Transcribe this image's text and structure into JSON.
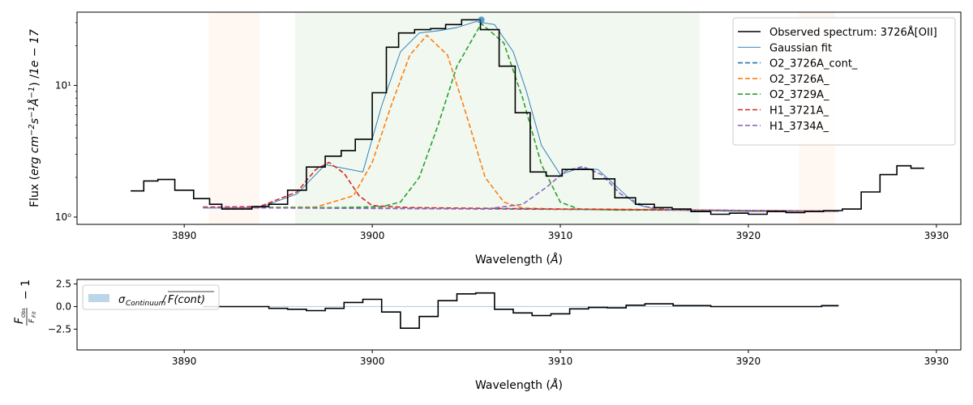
{
  "chart_data": [
    {
      "type": "line",
      "name": "main-spectrum",
      "xlabel": "Wavelength (Å)",
      "ylabel": "Flux (erg cm⁻² s⁻¹ Å⁻¹) /1e − 17",
      "xlim": [
        3884.3,
        3931.3
      ],
      "ylim": [
        0.88,
        36
      ],
      "yscale": "log",
      "x_ticks": [
        3890,
        3900,
        3910,
        3920,
        3930
      ],
      "y_ticks": [
        {
          "value": 1,
          "label": "10⁰"
        },
        {
          "value": 10,
          "label": "10¹"
        }
      ],
      "grid": false,
      "legend_position": "top-right",
      "observed": {
        "name": "Observed spectrum: 3726Å[OII]",
        "color": "#000000",
        "x": [
          3887.5,
          3888.2,
          3889.0,
          3890.0,
          3891.0,
          3891.7,
          3892.3,
          3893.2,
          3894.0,
          3895.0,
          3896.0,
          3897.0,
          3898.0,
          3898.7,
          3899.5,
          3900.5,
          3901.0,
          3901.8,
          3902.7,
          3903.5,
          3904.3,
          3905.2,
          3906.3,
          3907.2,
          3908.0,
          3908.8,
          3909.7,
          3910.5,
          3911.2,
          3912.3,
          3913.5,
          3914.5,
          3915.5,
          3916.4,
          3917.5,
          3918.5,
          3919.5,
          3920.5,
          3921.5,
          3922.5,
          3923.5,
          3924.5,
          3925.5,
          3926.5,
          3927.5,
          3928.3,
          3929.0
        ],
        "y": [
          1.58,
          1.88,
          1.93,
          1.6,
          1.38,
          1.25,
          1.15,
          1.15,
          1.2,
          1.25,
          1.6,
          2.4,
          2.9,
          3.2,
          3.9,
          8.8,
          19.5,
          25.0,
          26.5,
          27.0,
          29.0,
          31.5,
          26.5,
          14.0,
          6.2,
          2.2,
          2.05,
          2.3,
          2.3,
          1.95,
          1.4,
          1.25,
          1.18,
          1.15,
          1.1,
          1.05,
          1.07,
          1.05,
          1.1,
          1.08,
          1.1,
          1.12,
          1.15,
          1.55,
          2.1,
          2.45,
          2.35
        ]
      },
      "series": [
        {
          "name": "Gaussian fit",
          "color": "#1f77b4",
          "x": [
            3891.0,
            3894.0,
            3896.0,
            3897.5,
            3899.5,
            3900.5,
            3901.5,
            3902.5,
            3903.5,
            3904.5,
            3905.5,
            3906.5,
            3907.5,
            3908.2,
            3909.0,
            3910.0,
            3911.0,
            3912.0,
            3913.0,
            3914.0,
            3915.0,
            3917.0,
            3920.0,
            3922.0,
            3924.8
          ],
          "y": [
            1.17,
            1.18,
            1.5,
            2.5,
            2.2,
            7.0,
            18.0,
            25.0,
            26.0,
            27.5,
            30.5,
            29.0,
            18.0,
            9.0,
            3.5,
            2.1,
            2.35,
            2.3,
            1.7,
            1.25,
            1.15,
            1.12,
            1.1,
            1.1,
            1.1
          ]
        },
        {
          "name": "O2_3726A_cont_",
          "color": "#1f77b4",
          "x": [
            3891.0,
            3924.8
          ],
          "y": [
            1.19,
            1.11
          ]
        },
        {
          "name": "O2_3726A_",
          "color": "#ff7f0e",
          "x": [
            3891.0,
            3894.0,
            3897.0,
            3899.0,
            3900.0,
            3901.0,
            3902.0,
            3902.9,
            3904.0,
            3905.0,
            3906.0,
            3907.0,
            3908.0,
            3910.0,
            3912.0,
            3915.0,
            3920.0,
            3924.8
          ],
          "y": [
            1.19,
            1.18,
            1.19,
            1.45,
            2.6,
            7.0,
            17.0,
            24.0,
            17.0,
            6.0,
            2.0,
            1.3,
            1.17,
            1.15,
            1.15,
            1.14,
            1.12,
            1.11
          ]
        },
        {
          "name": "O2_3729A_",
          "color": "#2ca02c",
          "x": [
            3891.0,
            3898.0,
            3900.5,
            3901.5,
            3902.5,
            3903.5,
            3904.5,
            3905.8,
            3907.0,
            3908.0,
            3909.0,
            3910.0,
            3911.0,
            3913.0,
            3916.0,
            3920.0,
            3924.8
          ],
          "y": [
            1.19,
            1.18,
            1.2,
            1.3,
            2.0,
            5.0,
            14.0,
            29.5,
            21.0,
            8.0,
            2.5,
            1.3,
            1.15,
            1.13,
            1.13,
            1.12,
            1.11
          ]
        },
        {
          "name": "H1_3721A_",
          "color": "#d62728",
          "x": [
            3891.0,
            3894.0,
            3896.0,
            3897.0,
            3897.7,
            3898.5,
            3899.3,
            3900.0,
            3902.0,
            3910.0,
            3924.8
          ],
          "y": [
            1.19,
            1.2,
            1.55,
            2.3,
            2.6,
            2.15,
            1.45,
            1.22,
            1.18,
            1.15,
            1.11
          ]
        },
        {
          "name": "H1_3734A_",
          "color": "#9467bd",
          "x": [
            3891.0,
            3906.0,
            3908.0,
            3909.3,
            3910.3,
            3911.2,
            3912.2,
            3913.2,
            3914.5,
            3916.0,
            3924.8
          ],
          "y": [
            1.18,
            1.15,
            1.25,
            1.7,
            2.25,
            2.42,
            2.1,
            1.5,
            1.2,
            1.13,
            1.11
          ]
        }
      ],
      "shaded_regions": [
        {
          "x0": 3891.3,
          "x1": 3894.0,
          "color": "#ff7f0e"
        },
        {
          "x0": 3895.9,
          "x1": 3917.4,
          "color": "#2ca02c"
        },
        {
          "x0": 3922.7,
          "x1": 3924.6,
          "color": "#ff7f0e"
        }
      ],
      "peak_marker": {
        "x": 3905.8,
        "y": 31.5,
        "color": "#1f77b4"
      }
    },
    {
      "type": "line",
      "name": "residual",
      "xlabel": "Wavelength (Å)",
      "ylabel": "F_obs / F_fit − 1",
      "xlim": [
        3884.3,
        3931.3
      ],
      "ylim": [
        -4.8,
        3.0
      ],
      "x_ticks": [
        3890,
        3900,
        3910,
        3920,
        3930
      ],
      "y_ticks": [
        {
          "value": 2.5,
          "label": "2.5"
        },
        {
          "value": 0,
          "label": "0.0"
        },
        {
          "value": -2.5,
          "label": "−2.5"
        }
      ],
      "legend_position": "top-left",
      "legend_entry": "σ_Continuum / F(cont)",
      "band_color": "#1f77b4",
      "band": [
        -0.05,
        0.05
      ],
      "residual": {
        "color": "#000000",
        "x": [
          3891.0,
          3892.0,
          3893.0,
          3894.0,
          3895.0,
          3896.0,
          3897.0,
          3898.0,
          3899.0,
          3900.0,
          3901.0,
          3902.0,
          3903.0,
          3904.0,
          3905.0,
          3906.0,
          3907.0,
          3908.0,
          3909.0,
          3910.0,
          3911.0,
          3912.0,
          3913.0,
          3914.0,
          3915.0,
          3917.0,
          3919.0,
          3921.0,
          3923.0,
          3924.8
        ],
        "y": [
          0.0,
          0.0,
          0.0,
          0.0,
          -0.2,
          -0.3,
          -0.45,
          -0.2,
          0.45,
          0.8,
          -0.6,
          -2.4,
          -1.1,
          0.65,
          1.4,
          1.5,
          -0.3,
          -0.7,
          -1.0,
          -0.8,
          -0.25,
          -0.1,
          -0.15,
          0.15,
          0.3,
          0.1,
          0.0,
          0.0,
          0.0,
          0.1
        ]
      }
    }
  ]
}
